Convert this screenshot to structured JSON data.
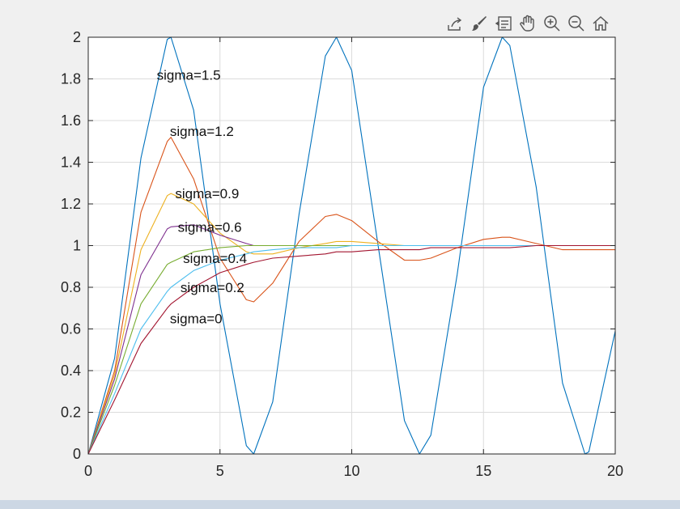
{
  "toolbar": {
    "icons": [
      "export-icon",
      "brush-icon",
      "data-tips-icon",
      "pan-hand-icon",
      "zoom-in-icon",
      "zoom-out-icon",
      "home-icon"
    ]
  },
  "colors": {
    "axes": "#262626",
    "grid": "#dcdcdc",
    "series": [
      "#0072BD",
      "#D95319",
      "#EDB120",
      "#7E2F8E",
      "#77AC30",
      "#4DBEEE",
      "#A2142F"
    ]
  },
  "chart_data": {
    "type": "line",
    "xlim": [
      0,
      20
    ],
    "ylim": [
      0,
      2
    ],
    "xticks": [
      "0",
      "5",
      "10",
      "15",
      "20"
    ],
    "yticks": [
      "0",
      "0.2",
      "0.4",
      "0.6",
      "0.8",
      "1",
      "1.2",
      "1.4",
      "1.6",
      "1.8",
      "2"
    ],
    "grid": true,
    "title": "",
    "xlabel": "",
    "ylabel": "",
    "x": [
      0,
      1,
      2,
      3,
      3.14,
      4,
      5,
      6,
      6.28,
      7,
      8,
      9,
      9.42,
      10,
      11,
      12,
      12.57,
      13,
      14,
      15,
      15.71,
      16,
      17,
      18,
      18.85,
      19,
      20
    ],
    "series": [
      {
        "values": [
          0,
          0.46,
          1.42,
          1.99,
          2.0,
          1.65,
          0.72,
          0.04,
          0.0,
          0.25,
          1.15,
          1.91,
          2.0,
          1.84,
          1.0,
          0.16,
          0.0,
          0.09,
          0.86,
          1.76,
          2.0,
          1.96,
          1.28,
          0.34,
          0.0,
          0.01,
          0.59
        ]
      },
      {
        "values": [
          0,
          0.4,
          1.16,
          1.5,
          1.52,
          1.32,
          0.94,
          0.74,
          0.73,
          0.82,
          1.02,
          1.14,
          1.15,
          1.12,
          1.02,
          0.93,
          0.93,
          0.94,
          0.99,
          1.03,
          1.04,
          1.04,
          1.01,
          0.98,
          0.98,
          0.98,
          0.98
        ]
      },
      {
        "values": [
          0,
          0.38,
          0.98,
          1.24,
          1.25,
          1.2,
          1.06,
          0.97,
          0.96,
          0.96,
          0.99,
          1.01,
          1.02,
          1.02,
          1.01,
          1.0,
          1.0,
          1.0,
          1.0,
          1.0,
          1.0,
          1.0,
          1.0,
          1.0,
          1.0,
          1.0,
          1.0
        ]
      },
      {
        "values": [
          0,
          0.36,
          0.86,
          1.08,
          1.09,
          1.1,
          1.05,
          1.01,
          1.0,
          1.0,
          1.0,
          1.0,
          1.0,
          1.0,
          1.0,
          1.0,
          1.0,
          1.0,
          1.0,
          1.0,
          1.0,
          1.0,
          1.0,
          1.0,
          1.0,
          1.0,
          1.0
        ]
      },
      {
        "values": [
          0,
          0.33,
          0.72,
          0.91,
          0.92,
          0.97,
          0.99,
          1.0,
          1.0,
          1.0,
          1.0,
          1.0,
          1.0,
          1.0,
          1.0,
          1.0,
          1.0,
          1.0,
          1.0,
          1.0,
          1.0,
          1.0,
          1.0,
          1.0,
          1.0,
          1.0,
          1.0
        ]
      },
      {
        "values": [
          0,
          0.29,
          0.6,
          0.78,
          0.8,
          0.88,
          0.93,
          0.96,
          0.97,
          0.98,
          0.99,
          0.99,
          0.99,
          1.0,
          1.0,
          1.0,
          1.0,
          1.0,
          1.0,
          1.0,
          1.0,
          1.0,
          1.0,
          1.0,
          1.0,
          1.0,
          1.0
        ]
      },
      {
        "values": [
          0,
          0.26,
          0.53,
          0.7,
          0.72,
          0.8,
          0.87,
          0.91,
          0.92,
          0.94,
          0.95,
          0.96,
          0.97,
          0.97,
          0.98,
          0.98,
          0.98,
          0.99,
          0.99,
          0.99,
          0.99,
          0.99,
          1.0,
          1.0,
          1.0,
          1.0,
          1.0
        ]
      }
    ],
    "annotations": [
      {
        "text": "sigma=1.5",
        "x": 2.6,
        "y": 1.82
      },
      {
        "text": "sigma=1.2",
        "x": 3.1,
        "y": 1.55
      },
      {
        "text": "sigma=0.9",
        "x": 3.3,
        "y": 1.25
      },
      {
        "text": "sigma=0.6",
        "x": 3.4,
        "y": 1.09
      },
      {
        "text": "sigma=0.4",
        "x": 3.6,
        "y": 0.94
      },
      {
        "text": "sigma=0.2",
        "x": 3.5,
        "y": 0.8
      },
      {
        "text": "sigma=0",
        "x": 3.1,
        "y": 0.65
      }
    ]
  }
}
